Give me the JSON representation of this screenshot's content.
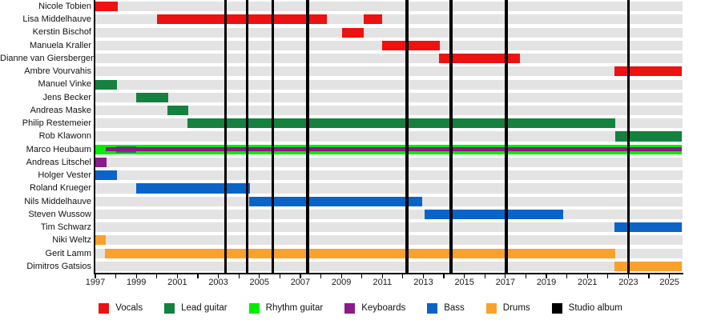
{
  "chart_data": {
    "type": "bar",
    "subtype": "gantt-band-member-timeline",
    "title": "",
    "x_axis": {
      "min": 1997,
      "max": 2025.62,
      "tick_interval_years": 1,
      "label_interval_years": 2,
      "tick_labels": [
        "1997",
        "1999",
        "2001",
        "2003",
        "2005",
        "2007",
        "2009",
        "2011",
        "2013",
        "2015",
        "2017",
        "2019",
        "2021",
        "2023",
        "2025"
      ]
    },
    "legend_position": "bottom",
    "legend": [
      {
        "label": "Vocals",
        "role": "vocals"
      },
      {
        "label": "Lead guitar",
        "role": "lead_guitar"
      },
      {
        "label": "Rhythm guitar",
        "role": "rhythm_guitar"
      },
      {
        "label": "Keyboards",
        "role": "keyboards"
      },
      {
        "label": "Bass",
        "role": "bass"
      },
      {
        "label": "Drums",
        "role": "drums"
      },
      {
        "label": "Studio album",
        "role": "studio_album"
      }
    ],
    "members": [
      {
        "name": "Nicole Tobien",
        "segments": [
          {
            "role": "vocals",
            "start": 1997.0,
            "end": 1998.1
          }
        ]
      },
      {
        "name": "Lisa Middelhauve",
        "segments": [
          {
            "role": "vocals",
            "start": 2000.0,
            "end": 2008.3
          },
          {
            "role": "vocals",
            "start": 2010.1,
            "end": 2011.0
          }
        ]
      },
      {
        "name": "Kerstin Bischof",
        "segments": [
          {
            "role": "vocals",
            "start": 2009.05,
            "end": 2010.1
          }
        ]
      },
      {
        "name": "Manuela Kraller",
        "segments": [
          {
            "role": "vocals",
            "start": 2011.0,
            "end": 2013.8
          }
        ]
      },
      {
        "name": "Dianne van Giersbergen",
        "segments": [
          {
            "role": "vocals",
            "start": 2013.75,
            "end": 2017.7
          }
        ]
      },
      {
        "name": "Ambre Vourvahis",
        "segments": [
          {
            "role": "vocals",
            "start": 2022.3,
            "end": 2025.6
          }
        ]
      },
      {
        "name": "Manuel Vinke",
        "segments": [
          {
            "role": "lead_guitar",
            "start": 1997.0,
            "end": 1998.05
          }
        ]
      },
      {
        "name": "Jens Becker",
        "segments": [
          {
            "role": "lead_guitar",
            "start": 1999.0,
            "end": 2000.55
          }
        ]
      },
      {
        "name": "Andreas Maske",
        "segments": [
          {
            "role": "lead_guitar",
            "start": 2000.5,
            "end": 2001.55
          }
        ]
      },
      {
        "name": "Philip Restemeier",
        "segments": [
          {
            "role": "lead_guitar",
            "start": 2001.5,
            "end": 2022.35
          }
        ]
      },
      {
        "name": "Rob Klawonn",
        "segments": [
          {
            "role": "lead_guitar",
            "start": 2022.35,
            "end": 2025.6
          }
        ]
      },
      {
        "name": "Marco Heubaum",
        "segments": [
          {
            "role": "rhythm_guitar",
            "start": 1997.0,
            "end": 2025.6,
            "overlay_level": 0
          },
          {
            "role": "lead_guitar",
            "start": 1998.0,
            "end": 1999.0,
            "overlay_level": 1
          },
          {
            "role": "keyboards",
            "start": 1997.5,
            "end": 2025.6,
            "overlay_level": 2
          }
        ]
      },
      {
        "name": "Andreas Litschel",
        "segments": [
          {
            "role": "keyboards",
            "start": 1997.0,
            "end": 1997.55
          }
        ]
      },
      {
        "name": "Holger Vester",
        "segments": [
          {
            "role": "bass",
            "start": 1997.0,
            "end": 1998.05
          }
        ]
      },
      {
        "name": "Roland Krueger",
        "segments": [
          {
            "role": "bass",
            "start": 1999.0,
            "end": 2004.55
          }
        ]
      },
      {
        "name": "Nils Middelhauve",
        "segments": [
          {
            "role": "bass",
            "start": 2004.5,
            "end": 2012.95
          }
        ]
      },
      {
        "name": "Steven Wussow",
        "segments": [
          {
            "role": "bass",
            "start": 2013.05,
            "end": 2019.8
          }
        ]
      },
      {
        "name": "Tim Schwarz",
        "segments": [
          {
            "role": "bass",
            "start": 2022.3,
            "end": 2025.6
          }
        ]
      },
      {
        "name": "Niki Weltz",
        "segments": [
          {
            "role": "drums",
            "start": 1997.0,
            "end": 1997.5
          }
        ]
      },
      {
        "name": "Gerit Lamm",
        "segments": [
          {
            "role": "drums",
            "start": 1997.45,
            "end": 2022.35
          }
        ]
      },
      {
        "name": "Dimitros Gatsios",
        "segments": [
          {
            "role": "drums",
            "start": 2022.3,
            "end": 2025.6
          }
        ]
      }
    ],
    "album_lines_years": [
      2003.35,
      2004.4,
      2005.65,
      2007.35,
      2012.2,
      2014.35,
      2017.05,
      2023.0
    ]
  },
  "colors": {
    "vocals": "#ee1111",
    "lead_guitar": "#14813e",
    "rhythm_guitar": "#00ed00",
    "keyboards": "#8b1a8b",
    "bass": "#0a64c8",
    "drums": "#f9a12b",
    "studio_album": "#000000",
    "row_stripe": "#e3e3e3",
    "axis": "#000000"
  }
}
